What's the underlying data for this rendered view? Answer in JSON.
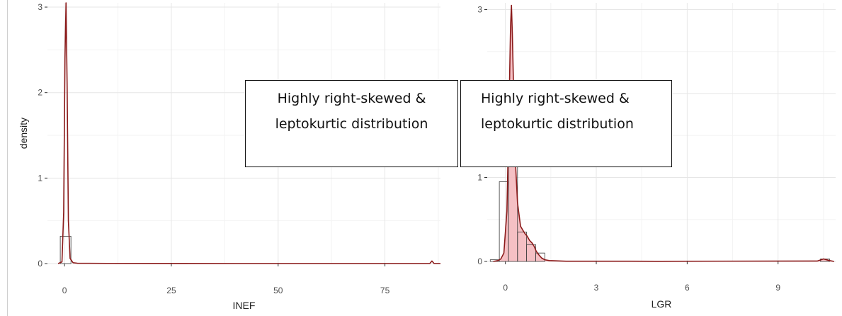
{
  "chart_data": [
    {
      "type": "histogram",
      "overlay": "density",
      "title": "",
      "xlabel": "INEF",
      "ylabel": "density",
      "xlim": [
        -4,
        88
      ],
      "ylim": [
        0,
        3.05
      ],
      "x_ticks": [
        0,
        25,
        50,
        75
      ],
      "y_ticks": [
        0,
        1,
        2,
        3
      ],
      "grid": true,
      "bins": [
        {
          "x0": -1.0,
          "x1": 1.5,
          "density": 0.32
        }
      ],
      "density_curve": {
        "color": "#8b1a1a",
        "x": [
          -1.5,
          -0.6,
          -0.2,
          0.1,
          0.35,
          0.6,
          0.9,
          1.3,
          2.0,
          3.0,
          10,
          40,
          85.5,
          86.0,
          86.5,
          88
        ],
        "y": [
          0,
          0.02,
          0.6,
          2.4,
          3.05,
          2.1,
          0.5,
          0.06,
          0.01,
          0.004,
          0.002,
          0.001,
          0.001,
          0.03,
          0.001,
          0.001
        ]
      }
    },
    {
      "type": "histogram",
      "overlay": "density",
      "title": "",
      "xlabel": "LGR",
      "ylabel": "density",
      "xlim": [
        -0.6,
        10.9
      ],
      "ylim": [
        0,
        3.08
      ],
      "x_ticks": [
        0,
        3,
        6,
        9
      ],
      "y_ticks": [
        0,
        1,
        2,
        3
      ],
      "grid": true,
      "bins": [
        {
          "x0": -0.5,
          "x1": -0.2,
          "density": 0.02
        },
        {
          "x0": -0.2,
          "x1": 0.1,
          "density": 0.95
        },
        {
          "x0": 0.1,
          "x1": 0.4,
          "density": 1.42
        },
        {
          "x0": 0.4,
          "x1": 0.7,
          "density": 0.35
        },
        {
          "x0": 0.7,
          "x1": 1.0,
          "density": 0.2
        },
        {
          "x0": 1.0,
          "x1": 1.3,
          "density": 0.1
        },
        {
          "x0": 10.4,
          "x1": 10.7,
          "density": 0.03
        }
      ],
      "density_curve": {
        "color": "#8b1a1a",
        "fill": "#f4b9be",
        "x": [
          -0.4,
          -0.25,
          -0.15,
          -0.05,
          0.05,
          0.12,
          0.17,
          0.2,
          0.23,
          0.28,
          0.33,
          0.4,
          0.5,
          0.58,
          0.65,
          0.72,
          0.8,
          0.88,
          0.95,
          1.02,
          1.1,
          1.2,
          1.3,
          1.45,
          2.0,
          5,
          10.3,
          10.5,
          10.7,
          10.85
        ],
        "y": [
          0,
          0.01,
          0.03,
          0.1,
          0.6,
          1.8,
          2.8,
          3.05,
          2.7,
          1.9,
          1.2,
          0.7,
          0.42,
          0.37,
          0.33,
          0.3,
          0.25,
          0.22,
          0.18,
          0.12,
          0.08,
          0.04,
          0.02,
          0.01,
          0.003,
          0.002,
          0.005,
          0.03,
          0.01,
          0
        ]
      }
    }
  ],
  "annotations": {
    "left_box": {
      "line1": "Highly right-skewed &",
      "line2": "leptokurtic distribution"
    },
    "right_box": {
      "line1": "Highly right-skewed &",
      "line2": "leptokurtic distribution"
    }
  },
  "colors": {
    "panel_bg": "#ffffff",
    "grid_major": "#e6e6e6",
    "grid_minor": "#f3f3f3",
    "bar_outline": "#3a3a3a",
    "curve": "#8b1a1a",
    "curve_fill": "#f4b9be"
  }
}
